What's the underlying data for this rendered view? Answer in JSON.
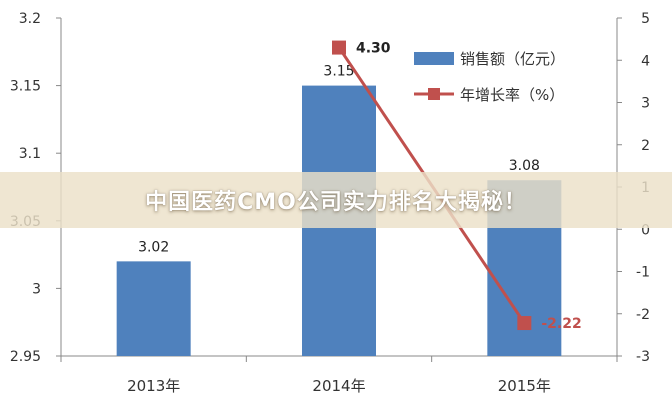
{
  "banner": {
    "title": "中国医药CMO公司实力排名大揭秘！"
  },
  "chart_data": {
    "type": "bar",
    "categories": [
      "2013年",
      "2014年",
      "2015年"
    ],
    "series": [
      {
        "name": "销售额（亿元）",
        "type": "bar",
        "axis": "left",
        "values": [
          3.02,
          3.15,
          3.08
        ],
        "labels": [
          "3.02",
          "3.15",
          "3.08"
        ],
        "color": "#4f81bd"
      },
      {
        "name": "年增长率（%）",
        "type": "line",
        "axis": "right",
        "values": [
          null,
          4.3,
          -2.22
        ],
        "labels": [
          "",
          "4.30",
          "-2.22"
        ],
        "color": "#c0504d"
      }
    ],
    "y_left": {
      "min": 2.95,
      "max": 3.2,
      "ticks": [
        "2.95",
        "3",
        "3.05",
        "3.1",
        "3.15",
        "3.2"
      ]
    },
    "y_right": {
      "min": -3,
      "max": 5,
      "ticks": [
        "-3",
        "-2",
        "-1",
        "0",
        "1",
        "2",
        "3",
        "4",
        "5"
      ]
    },
    "legend_position": "top-right",
    "grid": false
  }
}
